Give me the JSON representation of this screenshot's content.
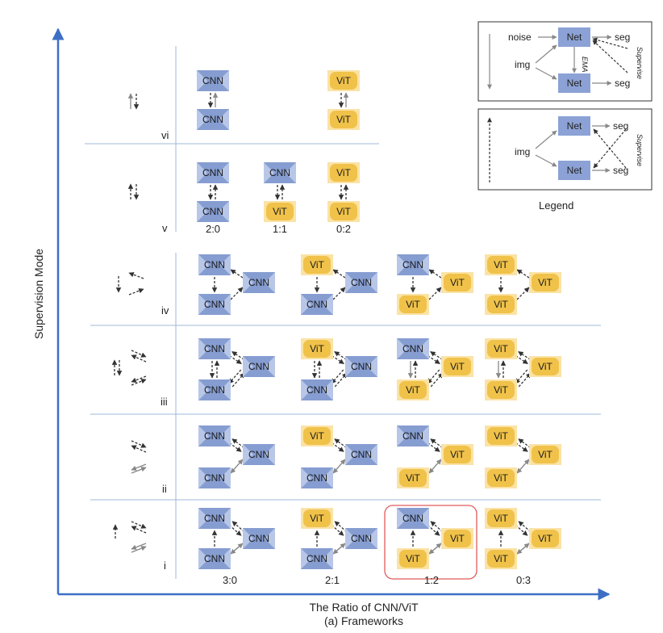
{
  "axes": {
    "y_label": "Supervision Mode",
    "x_label": "The Ratio of CNN/ViT",
    "caption": "(a) Frameworks"
  },
  "modes": [
    "vi",
    "v",
    "iv",
    "iii",
    "ii",
    "i"
  ],
  "ratios_top": [
    "2:0",
    "1:1",
    "0:2"
  ],
  "ratios_bottom": [
    "3:0",
    "2:1",
    "1:2",
    "0:3"
  ],
  "net_types": {
    "cnn": "CNN",
    "vit": "ViT"
  },
  "legend": {
    "caption": "Legend",
    "box1": {
      "noise": "noise",
      "img": "img",
      "net_top": "Net",
      "net_bottom": "Net",
      "ema": "EMA",
      "seg_top": "seg",
      "seg_bottom": "seg",
      "supervise": "Supervise"
    },
    "box2": {
      "img": "img",
      "net_top": "Net",
      "net_bottom": "Net",
      "seg_top": "seg",
      "seg_bottom": "seg",
      "supervise": "Supervise"
    }
  },
  "highlight": {
    "mode": "i",
    "ratio": "1:2"
  },
  "colors": {
    "axis": "#3d6fc4",
    "grid": "#9fb8d8",
    "cnn_fill": "#b8c7e8",
    "cnn_shape": "#7d95cc",
    "vit_fill": "#fbe3a6",
    "vit_shape": "#f0c24a",
    "legend_net": "#8ca2d6",
    "highlight": "#e05a5a"
  }
}
